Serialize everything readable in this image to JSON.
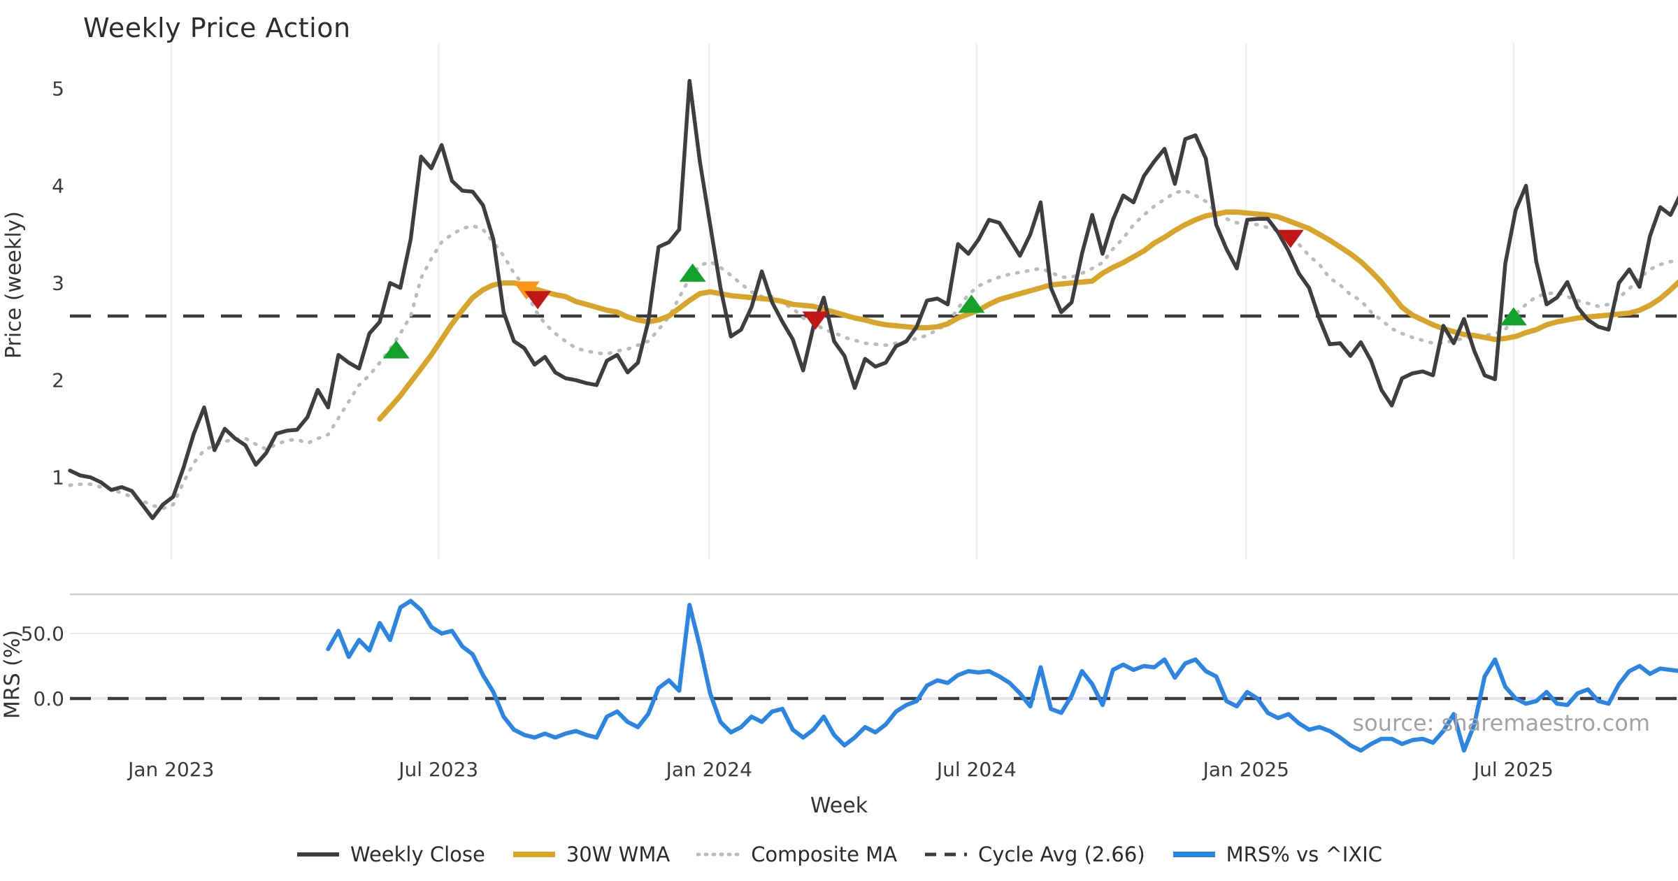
{
  "title": "Weekly Price Action",
  "axes": {
    "price_axis_label": "Price (weekly)",
    "mrs_axis_label": "MRS (%)",
    "x_axis_label": "Week",
    "price_ticks": [
      1,
      2,
      3,
      4,
      5
    ],
    "mrs_ticks": [
      {
        "v": 50,
        "label": "50.0"
      },
      {
        "v": 0,
        "label": "0.0"
      }
    ],
    "x_ticks": [
      {
        "i": 9.8,
        "label": "Jan 2023"
      },
      {
        "i": 35.7,
        "label": "Jul 2023"
      },
      {
        "i": 61.9,
        "label": "Jan 2024"
      },
      {
        "i": 87.8,
        "label": "Jul 2024"
      },
      {
        "i": 113.9,
        "label": "Jan 2025"
      },
      {
        "i": 139.8,
        "label": "Jul 2025"
      }
    ]
  },
  "watermark": "source: sharemaestro.com",
  "colors": {
    "close": "#3E3E40",
    "wma": "#D9A42A",
    "composite": "#BBBBBB",
    "cycle": "#3C3C3C",
    "mrs": "#2B85E4",
    "buy_green": "#13A229",
    "warn_orange": "#FB9718",
    "sell_red": "#C21717",
    "grid": "#ECECEC",
    "separator": "#CFCFCF",
    "zero_band": "#E4E8F3",
    "text": "#333333"
  },
  "legend": {
    "items": [
      {
        "label": "Weekly Close",
        "style": "solid",
        "color": "#3E3E40",
        "width": 6
      },
      {
        "label": "30W WMA",
        "style": "solid",
        "color": "#D9A42A",
        "width": 8
      },
      {
        "label": "Composite MA",
        "style": "dotted",
        "color": "#BBBBBB",
        "width": 5
      },
      {
        "label": "Cycle Avg (2.66)",
        "style": "dashed",
        "color": "#3C3C3C",
        "width": 5
      },
      {
        "label": "MRS% vs ^IXIC",
        "style": "solid",
        "color": "#2B85E4",
        "width": 8
      }
    ]
  },
  "chart_data": {
    "type": "line",
    "x_unit": "weeks (late Oct 2022 – late Oct 2025, one point per week)",
    "cycle_avg": 2.66,
    "price_ylim": [
      0.16,
      5.47
    ],
    "mrs_ylim": [
      -45,
      80
    ],
    "series": [
      {
        "name": "Weekly Close",
        "start_index": 0,
        "values": [
          1.07,
          1.02,
          1.0,
          0.95,
          0.87,
          0.9,
          0.86,
          0.72,
          0.58,
          0.72,
          0.8,
          1.1,
          1.45,
          1.72,
          1.28,
          1.5,
          1.4,
          1.33,
          1.13,
          1.25,
          1.45,
          1.48,
          1.49,
          1.62,
          1.9,
          1.72,
          2.26,
          2.18,
          2.12,
          2.48,
          2.6,
          3.0,
          2.95,
          3.45,
          4.3,
          4.18,
          4.42,
          4.05,
          3.95,
          3.94,
          3.8,
          3.45,
          2.7,
          2.4,
          2.33,
          2.16,
          2.24,
          2.08,
          2.02,
          2.0,
          1.97,
          1.95,
          2.2,
          2.26,
          2.08,
          2.18,
          2.6,
          3.37,
          3.42,
          3.55,
          5.08,
          4.25,
          3.6,
          2.95,
          2.45,
          2.52,
          2.75,
          3.12,
          2.8,
          2.6,
          2.42,
          2.1,
          2.55,
          2.85,
          2.4,
          2.25,
          1.92,
          2.22,
          2.14,
          2.18,
          2.35,
          2.4,
          2.55,
          2.82,
          2.84,
          2.78,
          3.4,
          3.3,
          3.45,
          3.65,
          3.62,
          3.45,
          3.28,
          3.5,
          3.83,
          2.95,
          2.7,
          2.8,
          3.3,
          3.7,
          3.3,
          3.65,
          3.9,
          3.83,
          4.1,
          4.25,
          4.38,
          4.02,
          4.48,
          4.52,
          4.28,
          3.6,
          3.35,
          3.15,
          3.65,
          3.66,
          3.66,
          3.52,
          3.33,
          3.1,
          2.95,
          2.63,
          2.37,
          2.38,
          2.25,
          2.39,
          2.2,
          1.9,
          1.74,
          2.02,
          2.07,
          2.09,
          2.05,
          2.56,
          2.38,
          2.63,
          2.3,
          2.05,
          2.01,
          3.2,
          3.75,
          4.0,
          3.22,
          2.78,
          2.85,
          3.01,
          2.75,
          2.62,
          2.55,
          2.52,
          3.0,
          3.14,
          2.96,
          3.48,
          3.78,
          3.7,
          3.92
        ]
      },
      {
        "name": "30W WMA",
        "start_index": 30,
        "values": [
          1.6,
          1.72,
          1.84,
          1.98,
          2.12,
          2.26,
          2.42,
          2.58,
          2.72,
          2.85,
          2.93,
          2.98,
          3.0,
          3.0,
          2.98,
          2.94,
          2.91,
          2.88,
          2.86,
          2.81,
          2.78,
          2.75,
          2.72,
          2.7,
          2.65,
          2.62,
          2.6,
          2.62,
          2.66,
          2.74,
          2.82,
          2.89,
          2.91,
          2.89,
          2.87,
          2.86,
          2.85,
          2.84,
          2.83,
          2.81,
          2.78,
          2.77,
          2.76,
          2.73,
          2.7,
          2.67,
          2.64,
          2.62,
          2.59,
          2.57,
          2.56,
          2.55,
          2.54,
          2.54,
          2.55,
          2.58,
          2.64,
          2.68,
          2.72,
          2.78,
          2.83,
          2.86,
          2.89,
          2.92,
          2.95,
          2.98,
          2.99,
          3.0,
          3.01,
          3.02,
          3.1,
          3.16,
          3.21,
          3.27,
          3.33,
          3.41,
          3.47,
          3.54,
          3.6,
          3.65,
          3.69,
          3.71,
          3.73,
          3.73,
          3.72,
          3.71,
          3.7,
          3.68,
          3.64,
          3.6,
          3.56,
          3.5,
          3.44,
          3.37,
          3.3,
          3.22,
          3.12,
          3.01,
          2.88,
          2.75,
          2.67,
          2.62,
          2.57,
          2.53,
          2.5,
          2.47,
          2.46,
          2.44,
          2.42,
          2.43,
          2.45,
          2.49,
          2.52,
          2.57,
          2.6,
          2.62,
          2.64,
          2.65,
          2.66,
          2.67,
          2.68,
          2.69,
          2.72,
          2.77,
          2.84,
          2.93,
          3.03
        ]
      },
      {
        "name": "Composite MA",
        "start_index": 0,
        "values": [
          0.92,
          0.93,
          0.93,
          0.9,
          0.88,
          0.84,
          0.8,
          0.76,
          0.71,
          0.68,
          0.72,
          0.95,
          1.15,
          1.28,
          1.33,
          1.37,
          1.39,
          1.4,
          1.34,
          1.29,
          1.34,
          1.38,
          1.39,
          1.35,
          1.4,
          1.44,
          1.61,
          1.78,
          1.95,
          2.05,
          2.18,
          2.32,
          2.48,
          2.66,
          3.05,
          3.25,
          3.42,
          3.5,
          3.56,
          3.59,
          3.55,
          3.42,
          3.28,
          3.1,
          2.97,
          2.73,
          2.58,
          2.48,
          2.4,
          2.33,
          2.3,
          2.28,
          2.27,
          2.3,
          2.32,
          2.36,
          2.4,
          2.52,
          2.65,
          2.85,
          3.05,
          3.18,
          3.22,
          3.16,
          3.08,
          2.99,
          2.91,
          2.86,
          2.86,
          2.79,
          2.74,
          2.64,
          2.6,
          2.52,
          2.49,
          2.44,
          2.41,
          2.38,
          2.37,
          2.36,
          2.38,
          2.4,
          2.43,
          2.46,
          2.52,
          2.58,
          2.74,
          2.88,
          2.97,
          3.02,
          3.06,
          3.09,
          3.11,
          3.13,
          3.15,
          3.11,
          3.06,
          3.06,
          3.1,
          3.15,
          3.21,
          3.35,
          3.46,
          3.6,
          3.7,
          3.79,
          3.86,
          3.93,
          3.95,
          3.9,
          3.84,
          3.73,
          3.66,
          3.62,
          3.61,
          3.6,
          3.57,
          3.54,
          3.47,
          3.4,
          3.28,
          3.19,
          3.05,
          2.98,
          2.88,
          2.82,
          2.7,
          2.62,
          2.53,
          2.48,
          2.44,
          2.41,
          2.38,
          2.38,
          2.41,
          2.43,
          2.45,
          2.46,
          2.48,
          2.52,
          2.68,
          2.78,
          2.86,
          2.89,
          2.9,
          2.86,
          2.82,
          2.79,
          2.76,
          2.78,
          2.85,
          2.94,
          3.05,
          3.14,
          3.19,
          3.22,
          3.24
        ]
      },
      {
        "name": "MRS% vs ^IXIC",
        "start_index": 25,
        "values": [
          38,
          52,
          32,
          45,
          37,
          58,
          45,
          70,
          75,
          68,
          55,
          50,
          52,
          40,
          34,
          18,
          5,
          -14,
          -24,
          -28,
          -30,
          -27,
          -30,
          -27,
          -25,
          -28,
          -30,
          -14,
          -10,
          -18,
          -22,
          -12,
          8,
          14,
          6,
          72,
          40,
          4,
          -18,
          -26,
          -22,
          -14,
          -18,
          -10,
          -8,
          -24,
          -30,
          -24,
          -14,
          -28,
          -36,
          -30,
          -22,
          -26,
          -20,
          -10,
          -5,
          -2,
          10,
          14,
          12,
          18,
          21,
          20,
          21,
          17,
          12,
          4,
          -6,
          24,
          -8,
          -11,
          2,
          21,
          11,
          -5,
          22,
          26,
          22,
          25,
          24,
          30,
          16,
          27,
          30,
          21,
          17,
          -2,
          -6,
          5,
          0,
          -11,
          -15,
          -12,
          -19,
          -24,
          -22,
          -25,
          -30,
          -36,
          -40,
          -35,
          -31,
          -31,
          -35,
          -32,
          -31,
          -34,
          -25,
          -12,
          -40,
          -20,
          17,
          30,
          9,
          0,
          -4,
          -2,
          5,
          -4,
          -5,
          4,
          7,
          -2,
          -4,
          11,
          21,
          25,
          19,
          23,
          22,
          21
        ]
      }
    ],
    "markers": {
      "buy_up_green": [
        {
          "i": 31.6,
          "price": 2.31
        },
        {
          "i": 60.3,
          "price": 3.1
        },
        {
          "i": 87.3,
          "price": 2.78
        },
        {
          "i": 139.8,
          "price": 2.65
        }
      ],
      "warn_down_orange": [
        {
          "i": 44.2,
          "price": 2.93
        }
      ],
      "sell_down_red": [
        {
          "i": 45.3,
          "price": 2.83
        },
        {
          "i": 72.2,
          "price": 2.62
        },
        {
          "i": 118.2,
          "price": 3.46
        }
      ]
    },
    "legend_position": "bottom-center",
    "grid": "vertical gridlines at each Jan/Jul tick in price panel; horizontal lines at 50.0 and 0.0 in MRS panel; dashed cycle-average line at 2.66 in price panel and dashed zero line in MRS panel"
  }
}
